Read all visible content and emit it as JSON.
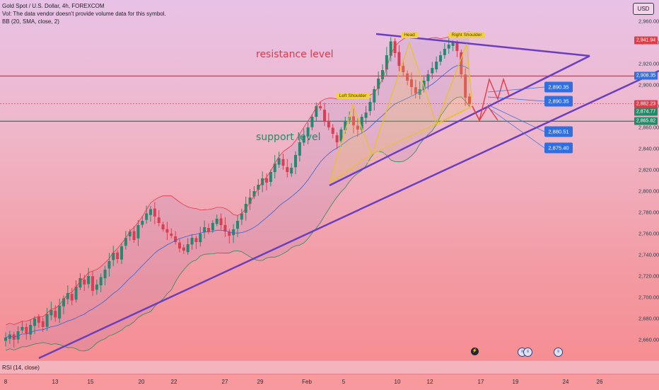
{
  "chart_data": {
    "type": "candlestick",
    "symbol": "Gold Spot / U.S. Dollar, 4h, FOREXCOM",
    "legend_lines": [
      "Gold Spot / U.S. Dollar, 4h, FOREXCOM",
      "Vol: The data vendor doesn't provide volume data for this symbol.",
      "BB (20, SMA, close, 2)"
    ],
    "currency": "USD",
    "ylim": [
      2650,
      2970
    ],
    "y_ticks": [
      2960,
      2940,
      2920,
      2900,
      2880,
      2860,
      2840,
      2820,
      2800,
      2780,
      2760,
      2740,
      2720,
      2700,
      2680,
      2660
    ],
    "x_ticks": [
      "8",
      "13",
      "15",
      "20",
      "22",
      "27",
      "29",
      "Feb",
      "5",
      "10",
      "12",
      "17",
      "19",
      "24",
      "26"
    ],
    "price_badges": [
      {
        "value": "2,941.94",
        "color": "#e53946"
      },
      {
        "value": "2,908.58",
        "color": "#e53946"
      },
      {
        "value": "2,908.35",
        "color": "#2f6fe0"
      },
      {
        "value": "2,882.23",
        "color": "#e53946"
      },
      {
        "value": "2,874.77",
        "color": "#1f8c68"
      },
      {
        "value": "2,865.82",
        "color": "#1f8c68"
      }
    ],
    "target_boxes": [
      "2,890.35",
      "2,890.35",
      "2,880.51",
      "2,875.40"
    ],
    "levels": {
      "resistance": {
        "label": "resistance level",
        "price": 2908.4,
        "color": "#e53946"
      },
      "support": {
        "label": "support level",
        "price": 2865.8,
        "color": "#1f8c68"
      }
    },
    "pattern_labels": [
      "Left Shoulder",
      "Head",
      "Right Shoulder"
    ],
    "indicator_pane": "RSI (14, close)",
    "close_series": [
      2662,
      2665,
      2660,
      2668,
      2672,
      2666,
      2674,
      2680,
      2676,
      2672,
      2684,
      2688,
      2681,
      2692,
      2699,
      2704,
      2697,
      2710,
      2718,
      2712,
      2720,
      2706,
      2712,
      2719,
      2726,
      2734,
      2742,
      2736,
      2748,
      2756,
      2762,
      2754,
      2768,
      2772,
      2779,
      2783,
      2776,
      2770,
      2764,
      2761,
      2758,
      2752,
      2746,
      2744,
      2750,
      2756,
      2752,
      2760,
      2766,
      2762,
      2770,
      2774,
      2768,
      2762,
      2758,
      2764,
      2772,
      2779,
      2788,
      2794,
      2800,
      2806,
      2812,
      2808,
      2818,
      2826,
      2831,
      2824,
      2818,
      2822,
      2834,
      2846,
      2852,
      2860,
      2870,
      2880,
      2878,
      2866,
      2860,
      2854,
      2846,
      2858,
      2866,
      2870,
      2862,
      2858,
      2870,
      2874,
      2884,
      2896,
      2906,
      2914,
      2928,
      2941,
      2930,
      2918,
      2912,
      2904,
      2898,
      2892,
      2896,
      2904,
      2910,
      2916,
      2922,
      2928,
      2934,
      2938,
      2940,
      2932,
      2910,
      2888,
      2882
    ],
    "series": [
      {
        "name": "close",
        "values_ref": "close_series",
        "up_color": "#1f8c68",
        "down_color": "#e53946"
      },
      {
        "name": "BB upper",
        "color": "#e53946"
      },
      {
        "name": "BB basis",
        "color": "#3561d8"
      },
      {
        "name": "BB lower",
        "color": "#2d8a54"
      }
    ],
    "projections": [
      {
        "from": 2882,
        "to_targets": [
          2890.35,
          2880.51,
          2875.4
        ]
      }
    ],
    "xlabel": "",
    "ylabel": ""
  }
}
